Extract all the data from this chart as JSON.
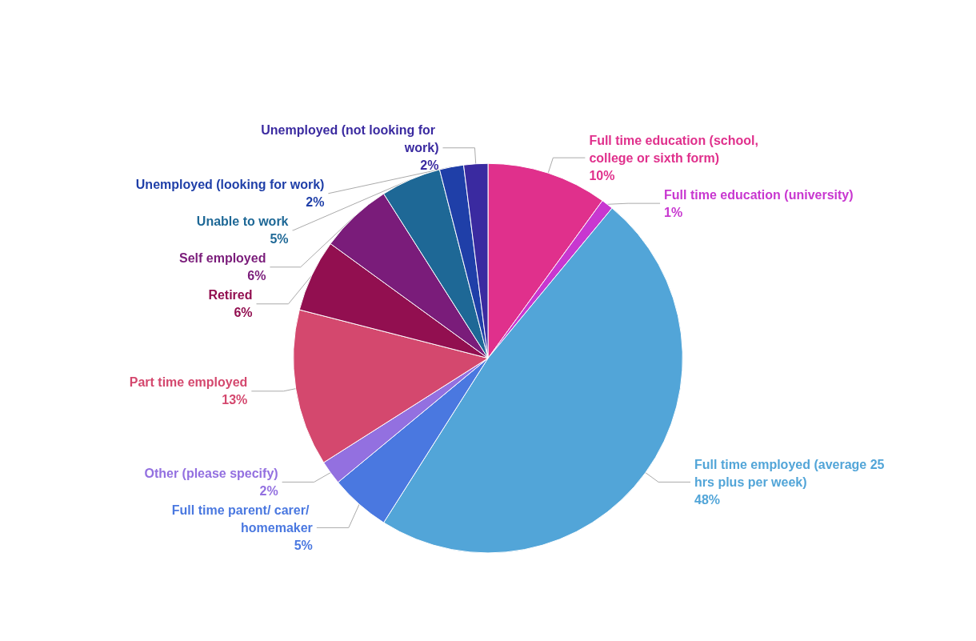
{
  "chart_data": {
    "type": "pie",
    "categories": [
      "Full time education (school, college or sixth form)",
      "Full time education (university)",
      "Full time employed (average 25 hrs plus per week)",
      "Full time parent/ carer/ homemaker",
      "Other (please specify)",
      "Part time employed",
      "Retired",
      "Self employed",
      "Unable to work",
      "Unemployed (looking for work)",
      "Unemployed (not looking for work)"
    ],
    "values": [
      10,
      1,
      48,
      5,
      2,
      13,
      6,
      6,
      5,
      2,
      2
    ],
    "value_labels": [
      "10%",
      "1%",
      "48%",
      "5%",
      "2%",
      "13%",
      "6%",
      "6%",
      "5%",
      "2%",
      "2%"
    ],
    "colors": [
      "#e0308c",
      "#c837d0",
      "#52a5d8",
      "#4a78e0",
      "#9370e0",
      "#d4486e",
      "#920f50",
      "#7a1c7a",
      "#1e6896",
      "#1f3fa8",
      "#3a2aa0"
    ],
    "legend": false
  }
}
